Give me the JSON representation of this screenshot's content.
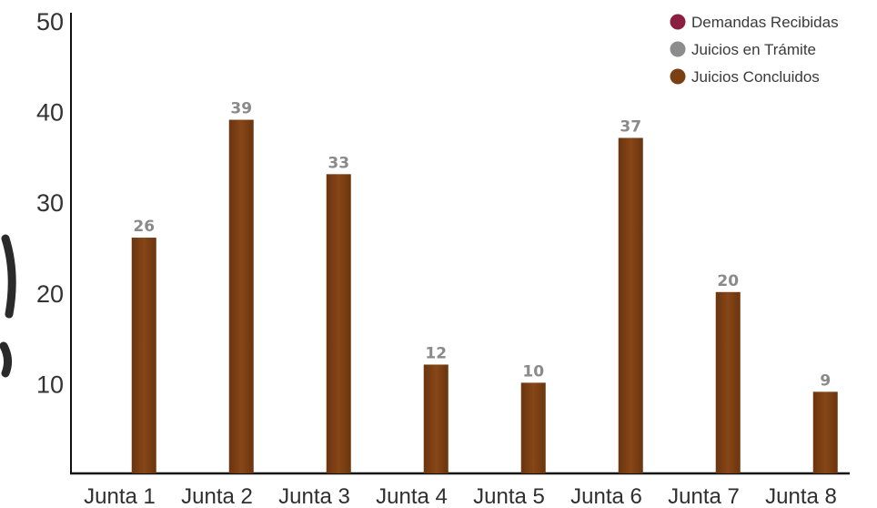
{
  "chart_data": {
    "type": "bar",
    "categories": [
      "Junta 1",
      "Junta 2",
      "Junta 3",
      "Junta 4",
      "Junta 5",
      "Junta 6",
      "Junta 7",
      "Junta 8"
    ],
    "y_ticks": [
      10,
      20,
      30,
      40,
      50
    ],
    "ylim": [
      0,
      50
    ],
    "grid": false,
    "legend_position": "top-right",
    "legend": [
      {
        "label": "Demandas Recibidas",
        "color": "#8b1f3f"
      },
      {
        "label": "Juicios en Trámite",
        "color": "#8c8c8c"
      },
      {
        "label": "Juicios Concluidos",
        "color": "#7a3f12"
      }
    ],
    "series": [
      {
        "name": "Juicios Concluidos",
        "color": "#7a3f12",
        "values": [
          26,
          39,
          33,
          12,
          10,
          37,
          20,
          9
        ]
      }
    ]
  }
}
